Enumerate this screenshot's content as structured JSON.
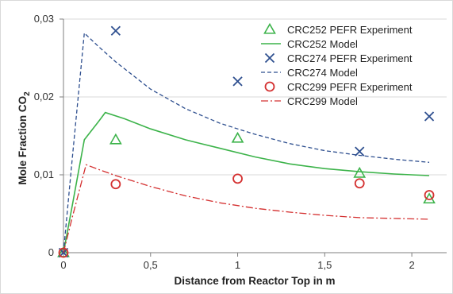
{
  "chart_data": {
    "type": "line",
    "title": "",
    "xlabel": "Distance from Reactor Top in m",
    "ylabel": "Mole Fraction CO",
    "ylabel_subscript": "2",
    "xlim": [
      0,
      2.2
    ],
    "ylim": [
      0,
      0.03
    ],
    "xticks": [
      0,
      0.5,
      1,
      1.5,
      2
    ],
    "xtick_labels": [
      "0",
      "0,5",
      "1",
      "1,5",
      "2"
    ],
    "yticks": [
      0,
      0.01,
      0.02,
      0.03
    ],
    "ytick_labels": [
      "0",
      "0,01",
      "0,02",
      "0,03"
    ],
    "grid": "horizontal",
    "legend_position": "top-right",
    "series": [
      {
        "name": "CRC252 PEFR Experiment",
        "kind": "scatter",
        "marker": "triangle",
        "color": "#3cb34a",
        "x": [
          0,
          0.3,
          1.0,
          1.7,
          2.1
        ],
        "y": [
          0,
          0.0145,
          0.0147,
          0.0102,
          0.0069
        ]
      },
      {
        "name": "CRC252 Model",
        "kind": "line",
        "dash": "solid",
        "color": "#3cb34a",
        "x": [
          0,
          0.05,
          0.12,
          0.2,
          0.24,
          0.35,
          0.5,
          0.7,
          0.9,
          1.1,
          1.3,
          1.5,
          1.7,
          1.9,
          2.1
        ],
        "y": [
          0,
          0.006,
          0.0145,
          0.0168,
          0.018,
          0.0172,
          0.0159,
          0.0145,
          0.0134,
          0.0123,
          0.0114,
          0.0108,
          0.0104,
          0.0101,
          0.0099
        ]
      },
      {
        "name": "CRC274 PEFR Experiment",
        "kind": "scatter",
        "marker": "x",
        "color": "#2e4f8f",
        "x": [
          0,
          0.3,
          1.0,
          1.7,
          2.1
        ],
        "y": [
          0,
          0.0285,
          0.022,
          0.013,
          0.0175
        ]
      },
      {
        "name": "CRC274 Model",
        "kind": "line",
        "dash": "dashed",
        "color": "#2e4f8f",
        "x": [
          0,
          0.05,
          0.12,
          0.2,
          0.3,
          0.5,
          0.7,
          0.9,
          1.1,
          1.3,
          1.5,
          1.7,
          1.9,
          2.1
        ],
        "y": [
          0,
          0.012,
          0.0282,
          0.0265,
          0.0245,
          0.021,
          0.0185,
          0.0166,
          0.0152,
          0.014,
          0.0131,
          0.0125,
          0.012,
          0.0116
        ]
      },
      {
        "name": "CRC299 PEFR Experiment",
        "kind": "scatter",
        "marker": "circle",
        "color": "#d43030",
        "x": [
          0,
          0.3,
          1.0,
          1.7,
          2.1
        ],
        "y": [
          0,
          0.0088,
          0.0095,
          0.0089,
          0.0074
        ]
      },
      {
        "name": "CRC299 Model",
        "kind": "line",
        "dash": "dashdot",
        "color": "#d43030",
        "x": [
          0,
          0.05,
          0.13,
          0.2,
          0.3,
          0.5,
          0.7,
          0.9,
          1.1,
          1.3,
          1.5,
          1.7,
          1.9,
          2.1
        ],
        "y": [
          0,
          0.0045,
          0.0113,
          0.0107,
          0.0099,
          0.0085,
          0.0073,
          0.0064,
          0.0057,
          0.0052,
          0.0048,
          0.0045,
          0.0044,
          0.0043
        ]
      }
    ]
  }
}
